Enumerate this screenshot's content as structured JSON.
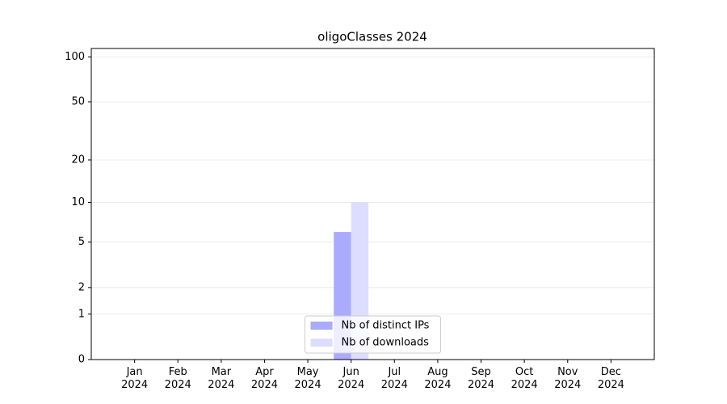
{
  "chart_data": {
    "type": "bar",
    "title": "oligoClasses 2024",
    "categories": [
      "Jan\n2024",
      "Feb\n2024",
      "Mar\n2024",
      "Apr\n2024",
      "May\n2024",
      "Jun\n2024",
      "Jul\n2024",
      "Aug\n2024",
      "Sep\n2024",
      "Oct\n2024",
      "Nov\n2024",
      "Dec\n2024"
    ],
    "series": [
      {
        "name": "Nb of distinct IPs",
        "color": "#aaaaff",
        "values": [
          0,
          0,
          0,
          0,
          0,
          6,
          0,
          0,
          0,
          0,
          0,
          0
        ]
      },
      {
        "name": "Nb of downloads",
        "color": "#ddddff",
        "values": [
          0,
          0,
          0,
          0,
          0,
          10,
          0,
          0,
          0,
          0,
          0,
          0
        ]
      }
    ],
    "yscale": "log1p",
    "ylim": [
      0,
      114
    ],
    "yticks": [
      0,
      1,
      2,
      5,
      10,
      20,
      50,
      100
    ],
    "grid": true,
    "legend": "lower center"
  }
}
